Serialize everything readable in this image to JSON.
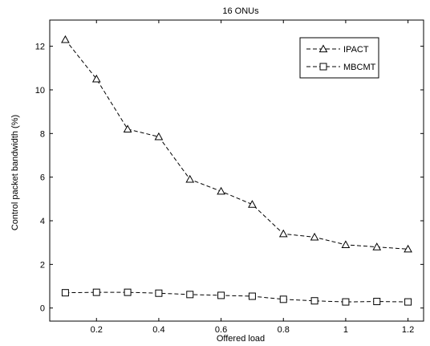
{
  "chart_data": {
    "type": "line",
    "title": "16 ONUs",
    "xlabel": "Offered load",
    "ylabel": "Control packet bandwidth (%)",
    "xlim": [
      0.05,
      1.25
    ],
    "ylim": [
      -0.6,
      13.2
    ],
    "xticks": [
      0.2,
      0.4,
      0.6,
      0.8,
      1,
      1.2
    ],
    "xtick_labels": [
      "0.2",
      "0.4",
      "0.6",
      "0.8",
      "1",
      "1.2"
    ],
    "yticks": [
      0,
      2,
      4,
      6,
      8,
      10,
      12
    ],
    "ytick_labels": [
      "0",
      "2",
      "4",
      "6",
      "8",
      "10",
      "12"
    ],
    "grid": false,
    "legend_position": "top-right",
    "x": [
      0.1,
      0.2,
      0.3,
      0.4,
      0.5,
      0.6,
      0.7,
      0.8,
      0.9,
      1.0,
      1.1,
      1.2
    ],
    "series": [
      {
        "name": "IPACT",
        "marker": "triangle",
        "line_style": "dashed",
        "color": "#000000",
        "values": [
          12.3,
          10.5,
          8.2,
          7.85,
          5.9,
          5.35,
          4.75,
          3.4,
          3.25,
          2.9,
          2.8,
          2.7
        ]
      },
      {
        "name": "MBCMT",
        "marker": "square",
        "line_style": "dashed",
        "color": "#000000",
        "values": [
          0.7,
          0.72,
          0.72,
          0.68,
          0.62,
          0.58,
          0.54,
          0.4,
          0.33,
          0.28,
          0.3,
          0.28
        ]
      }
    ]
  }
}
